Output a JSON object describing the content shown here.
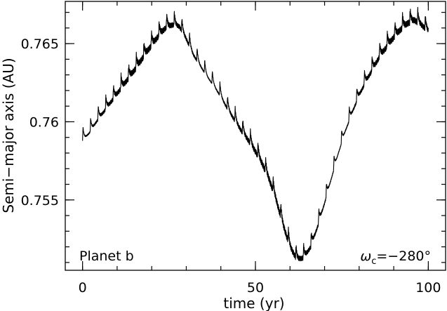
{
  "chart_data": {
    "type": "line",
    "title": "",
    "xlabel": "time (yr)",
    "ylabel": "Semi−major axis (AU)",
    "xlim": [
      -5,
      105
    ],
    "ylim": [
      0.7505,
      0.7677
    ],
    "x_ticks": [
      0,
      50,
      100
    ],
    "x_tick_labels": [
      "0",
      "50",
      "100"
    ],
    "y_ticks": [
      0.755,
      0.76,
      0.765
    ],
    "y_tick_labels": [
      "0.755",
      "0.76",
      "0.765"
    ],
    "x_minor_step": 10,
    "y_minor_step": 0.001,
    "grid": false,
    "legend": "none",
    "line_color": "#000000",
    "annotations": {
      "left": "Planet b",
      "right_symbol": "ω",
      "right_subscript": "c",
      "right_value": "=−280°"
    },
    "series": [
      {
        "x": [
          0,
          2,
          4,
          6,
          8,
          10,
          12,
          14,
          16,
          18,
          20,
          22,
          24,
          26,
          28,
          30,
          32,
          34,
          36,
          38,
          40,
          42,
          44,
          46,
          48,
          50,
          52,
          54,
          56,
          58,
          60,
          62,
          64,
          66,
          68,
          70,
          72,
          74,
          76,
          78,
          80,
          82,
          84,
          86,
          88,
          90,
          92,
          94,
          96,
          98,
          100
        ],
        "y": [
          0.759,
          0.7595,
          0.7602,
          0.7608,
          0.7614,
          0.762,
          0.7626,
          0.7632,
          0.7638,
          0.7645,
          0.7651,
          0.7657,
          0.7662,
          0.7664,
          0.7663,
          0.7655,
          0.7645,
          0.7638,
          0.7631,
          0.7625,
          0.7618,
          0.761,
          0.7603,
          0.7596,
          0.759,
          0.7583,
          0.7575,
          0.7565,
          0.7552,
          0.7536,
          0.7522,
          0.7514,
          0.7515,
          0.7522,
          0.7535,
          0.755,
          0.7566,
          0.7582,
          0.7596,
          0.7608,
          0.7619,
          0.7628,
          0.7636,
          0.7644,
          0.765,
          0.7656,
          0.7661,
          0.7665,
          0.7667,
          0.7664,
          0.766
        ]
      }
    ]
  }
}
